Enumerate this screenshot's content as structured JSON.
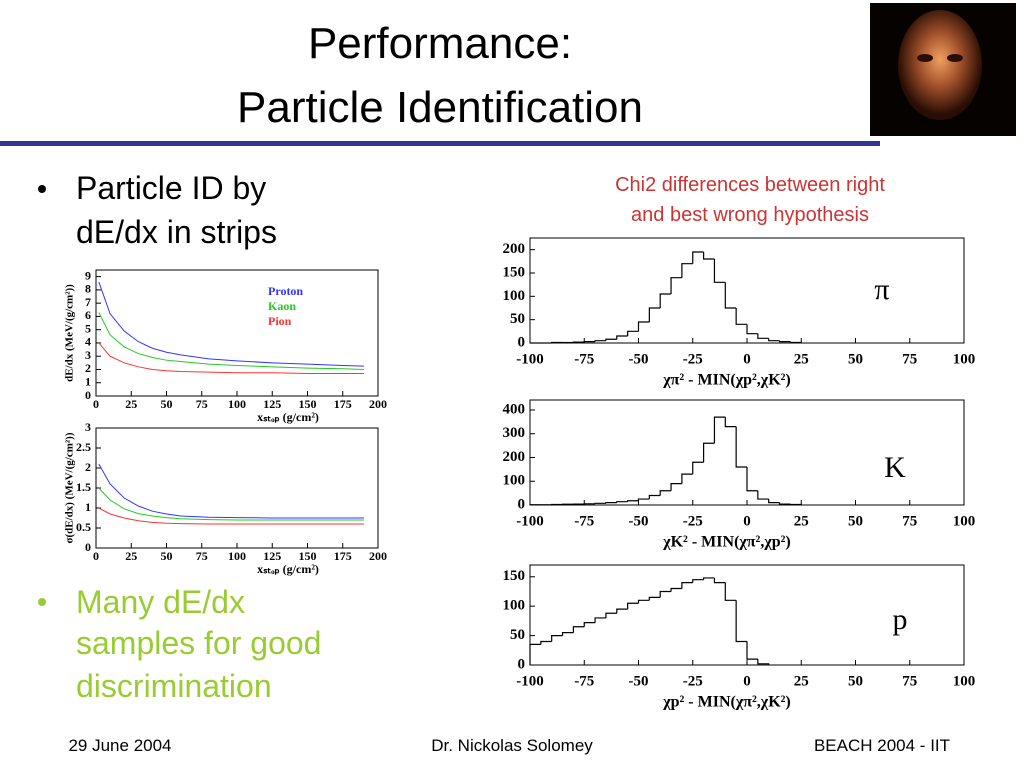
{
  "title": [
    "Performance:",
    "Particle Identification"
  ],
  "bullets": [
    {
      "lines": [
        "Particle ID by",
        "dE/dx in strips"
      ]
    },
    {
      "lines": [
        "Many dE/dx",
        "samples for good",
        "discrimination"
      ]
    }
  ],
  "annotation": [
    "Chi2 differences between right",
    "and best wrong hypothesis"
  ],
  "footer": [
    "29 June 2004",
    "Dr. Nickolas Solomey",
    "BEACH 2004 - IIT"
  ],
  "chart_data": [
    {
      "type": "line",
      "x_label": "xₛₜₒₚ (g/cm²)",
      "y_label": "dE/dx (MeV/(g/cm²))",
      "x": [
        2,
        10,
        20,
        30,
        40,
        50,
        60,
        80,
        100,
        125,
        150,
        175,
        190
      ],
      "series": [
        {
          "name": "Proton",
          "color": "#3333ff",
          "values": [
            8.6,
            6.2,
            4.9,
            4.1,
            3.6,
            3.3,
            3.1,
            2.8,
            2.65,
            2.5,
            2.4,
            2.3,
            2.25
          ]
        },
        {
          "name": "Kaon",
          "color": "#22cc22",
          "values": [
            6.3,
            4.6,
            3.7,
            3.2,
            2.9,
            2.7,
            2.6,
            2.4,
            2.3,
            2.2,
            2.1,
            2.05,
            2.0
          ]
        },
        {
          "name": "Pion",
          "color": "#ff3333",
          "values": [
            4.0,
            3.0,
            2.5,
            2.2,
            2.0,
            1.9,
            1.85,
            1.8,
            1.75,
            1.75,
            1.7,
            1.7,
            1.7
          ]
        }
      ],
      "xlim": [
        0,
        200
      ],
      "ylim": [
        0,
        9.5
      ],
      "xticks": [
        0,
        25,
        50,
        75,
        100,
        125,
        150,
        175,
        200
      ],
      "yticks": [
        0,
        1,
        2,
        3,
        4,
        5,
        6,
        7,
        8,
        9
      ],
      "legend": "upper right"
    },
    {
      "type": "line",
      "x_label": "xₛₜₒₚ (g/cm²)",
      "y_label": "σ(dE/dx) (MeV/(g/cm²))",
      "x": [
        2,
        10,
        20,
        30,
        40,
        50,
        60,
        80,
        100,
        125,
        150,
        175,
        190
      ],
      "series": [
        {
          "color": "#3333ff",
          "values": [
            2.1,
            1.6,
            1.25,
            1.05,
            0.92,
            0.85,
            0.8,
            0.77,
            0.76,
            0.75,
            0.75,
            0.75,
            0.75
          ]
        },
        {
          "color": "#22cc22",
          "values": [
            1.5,
            1.2,
            0.98,
            0.86,
            0.8,
            0.76,
            0.73,
            0.71,
            0.7,
            0.7,
            0.7,
            0.7,
            0.7
          ]
        },
        {
          "color": "#ff3333",
          "values": [
            1.0,
            0.85,
            0.75,
            0.68,
            0.64,
            0.62,
            0.61,
            0.6,
            0.6,
            0.6,
            0.6,
            0.6,
            0.6
          ]
        }
      ],
      "xlim": [
        0,
        200
      ],
      "ylim": [
        0,
        3
      ],
      "xticks": [
        0,
        25,
        50,
        75,
        100,
        125,
        150,
        175,
        200
      ],
      "yticks": [
        0,
        0.5,
        1,
        1.5,
        2,
        2.5,
        3
      ]
    },
    {
      "type": "histogram",
      "label": "π",
      "x_label": "χπ² - MIN(χp²,χK²)",
      "color": "#000000",
      "bins": [
        -100,
        -95,
        -90,
        -85,
        -80,
        -75,
        -70,
        -65,
        -60,
        -55,
        -50,
        -45,
        -40,
        -35,
        -30,
        -25,
        -20,
        -15,
        -10,
        -5,
        0,
        5,
        10,
        15,
        20,
        25
      ],
      "values": [
        0,
        0,
        1,
        1,
        2,
        3,
        5,
        8,
        15,
        25,
        45,
        75,
        105,
        140,
        170,
        195,
        180,
        130,
        75,
        40,
        20,
        10,
        5,
        3,
        1
      ],
      "xlim": [
        -100,
        100
      ],
      "ylim": [
        0,
        225
      ],
      "xticks": [
        -100,
        -75,
        -50,
        -25,
        0,
        25,
        50,
        75,
        100
      ],
      "yticks": [
        0,
        50,
        100,
        150,
        200
      ]
    },
    {
      "type": "histogram",
      "label": "K",
      "x_label": "χK² - MIN(χπ²,χp²)",
      "color": "#000000",
      "bins": [
        -100,
        -95,
        -90,
        -85,
        -80,
        -75,
        -70,
        -65,
        -60,
        -55,
        -50,
        -45,
        -40,
        -35,
        -30,
        -25,
        -20,
        -15,
        -10,
        -5,
        0,
        5,
        10,
        15,
        20,
        25
      ],
      "values": [
        1,
        1,
        2,
        3,
        4,
        5,
        7,
        10,
        14,
        18,
        25,
        40,
        60,
        90,
        130,
        180,
        260,
        370,
        330,
        160,
        60,
        25,
        10,
        4,
        2
      ],
      "xlim": [
        -100,
        100
      ],
      "ylim": [
        0,
        442
      ],
      "xticks": [
        -100,
        -75,
        -50,
        -25,
        0,
        25,
        50,
        75,
        100
      ],
      "yticks": [
        0,
        100,
        200,
        300,
        400
      ]
    },
    {
      "type": "histogram",
      "label": "p",
      "x_label": "χp² - MIN(χπ²,χK²)",
      "color": "#000000",
      "bins": [
        -100,
        -95,
        -90,
        -85,
        -80,
        -75,
        -70,
        -65,
        -60,
        -55,
        -50,
        -45,
        -40,
        -35,
        -30,
        -25,
        -20,
        -15,
        -10,
        -5,
        0,
        5,
        10
      ],
      "values": [
        35,
        40,
        50,
        55,
        65,
        72,
        80,
        88,
        95,
        105,
        110,
        115,
        125,
        130,
        140,
        145,
        148,
        140,
        110,
        40,
        10,
        2
      ],
      "xlim": [
        -100,
        100
      ],
      "ylim": [
        0,
        170
      ],
      "xticks": [
        -100,
        -75,
        -50,
        -25,
        0,
        25,
        50,
        75,
        100
      ],
      "yticks": [
        0,
        50,
        100,
        150
      ]
    }
  ]
}
